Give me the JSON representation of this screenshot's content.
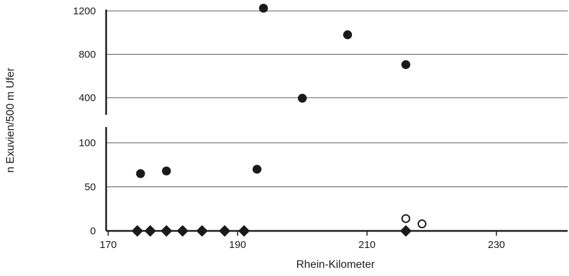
{
  "chart_data": {
    "type": "scatter",
    "title": "",
    "xlabel": "Rhein-Kilometer",
    "ylabel": "n Exuvien/500 m Ufer",
    "xlim": [
      170,
      235
    ],
    "x_ticks": [
      170,
      190,
      210,
      230
    ],
    "y_axis_break": true,
    "panels": [
      {
        "name": "upper",
        "ylim": [
          210,
          1250
        ],
        "y_ticks": [
          400,
          800,
          1200
        ],
        "grid": true
      },
      {
        "name": "lower",
        "ylim": [
          0,
          115
        ],
        "y_ticks": [
          0,
          50,
          100
        ],
        "grid": true
      }
    ],
    "series": [
      {
        "marker": "filled-circle",
        "color": "#1a1a1a",
        "points": [
          {
            "x": 175,
            "y": 65
          },
          {
            "x": 179,
            "y": 68
          },
          {
            "x": 193,
            "y": 70
          },
          {
            "x": 194,
            "y": 1225
          },
          {
            "x": 200,
            "y": 395
          },
          {
            "x": 207,
            "y": 980
          },
          {
            "x": 216,
            "y": 705
          }
        ]
      },
      {
        "marker": "open-circle",
        "color": "#1a1a1a",
        "points": [
          {
            "x": 216,
            "y": 14
          },
          {
            "x": 218.5,
            "y": 8
          }
        ]
      },
      {
        "marker": "filled-diamond",
        "color": "#1a1a1a",
        "points": [
          {
            "x": 174.5,
            "y": 0
          },
          {
            "x": 176.5,
            "y": 0
          },
          {
            "x": 179,
            "y": 0
          },
          {
            "x": 181.5,
            "y": 0
          },
          {
            "x": 184.5,
            "y": 0
          },
          {
            "x": 188,
            "y": 0
          },
          {
            "x": 191,
            "y": 0
          },
          {
            "x": 216,
            "y": 0
          }
        ]
      }
    ]
  }
}
